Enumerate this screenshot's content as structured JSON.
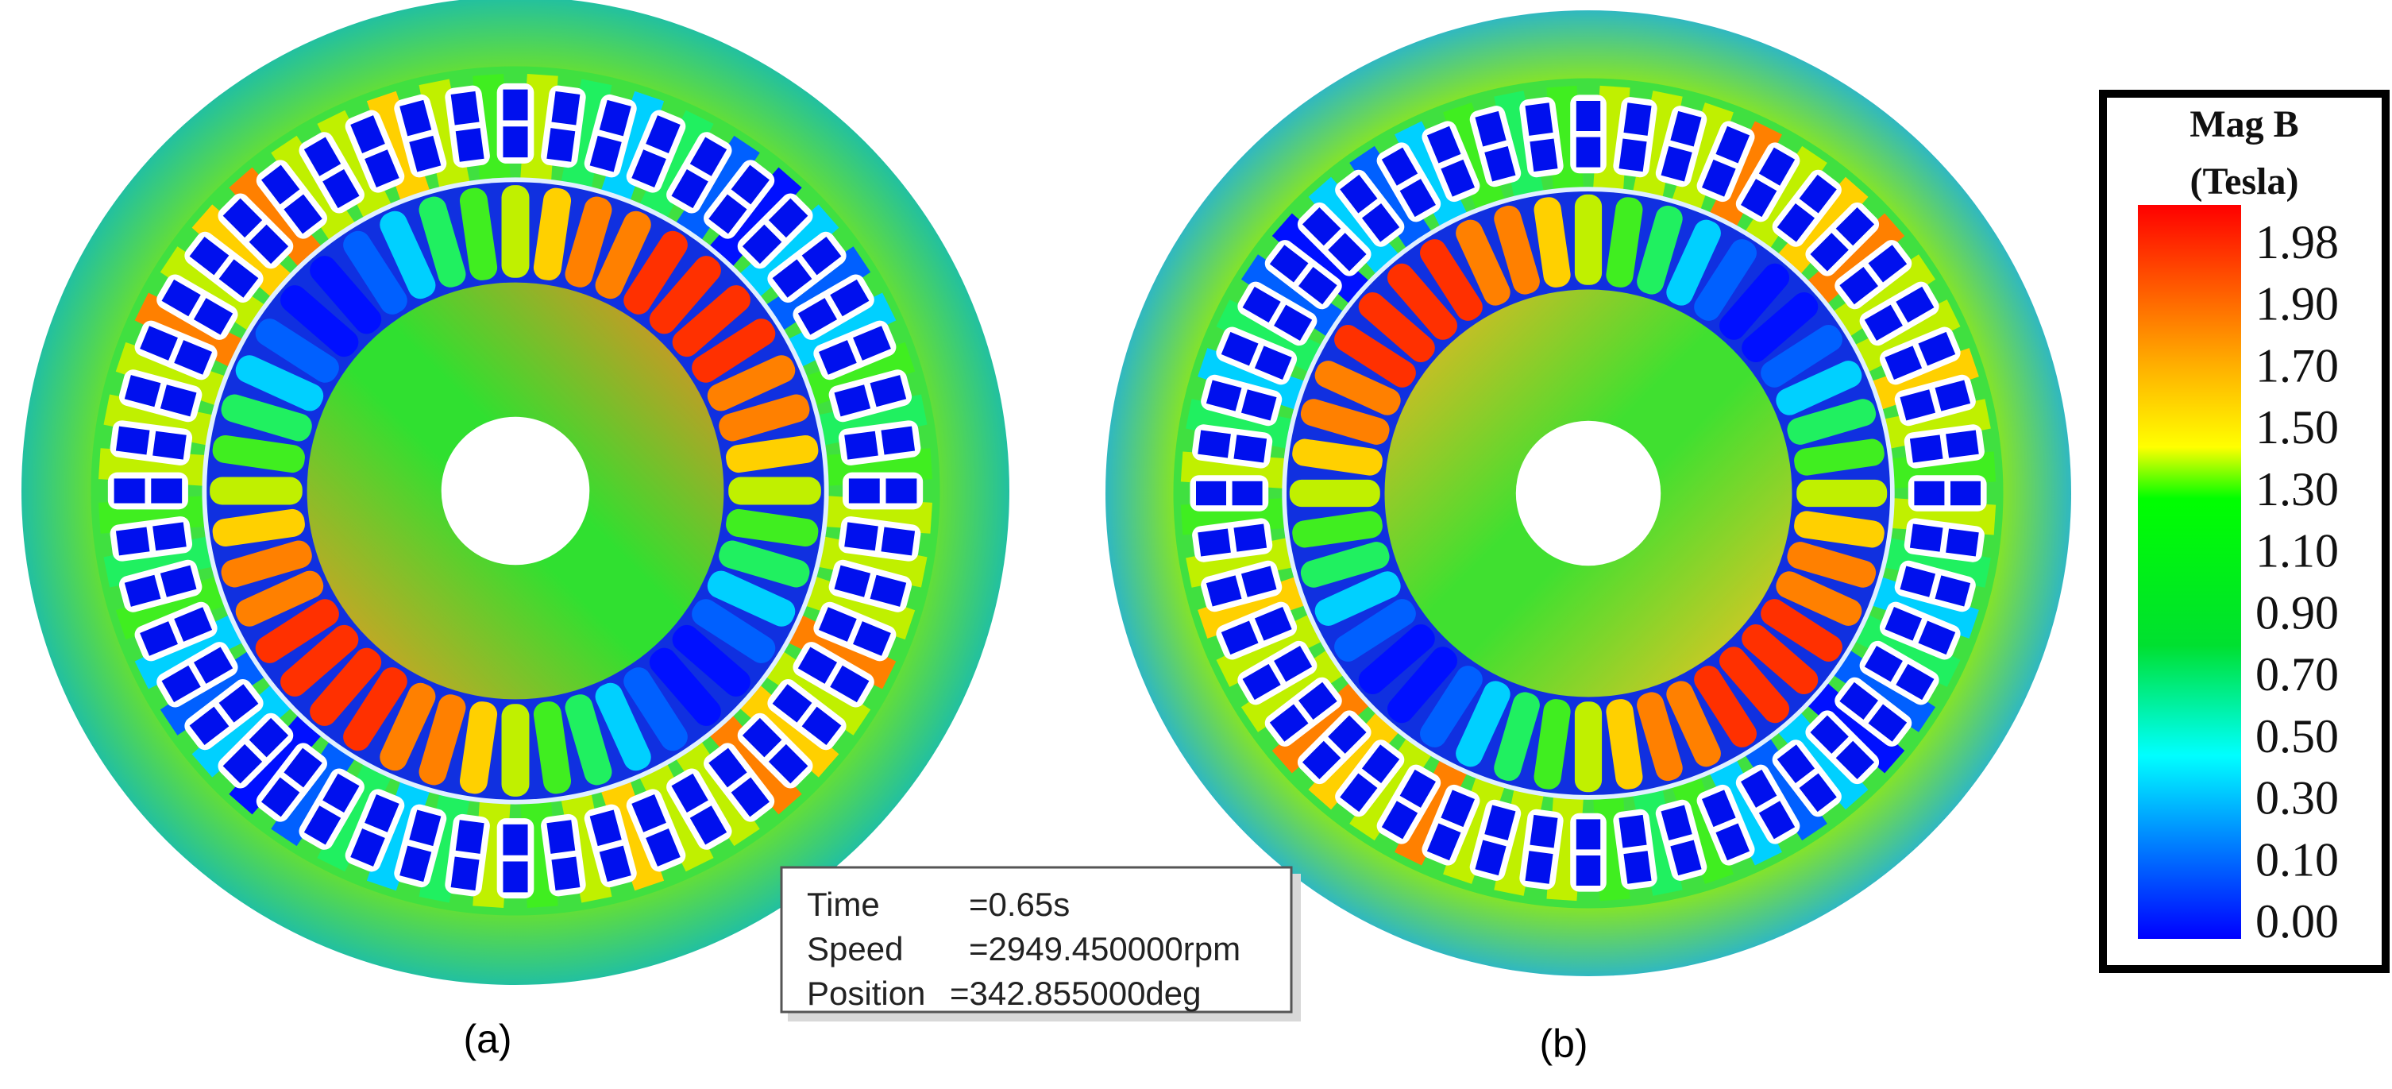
{
  "legend": {
    "title": "Mag B",
    "unit": "(Tesla)",
    "labels": [
      "1.98",
      "1.90",
      "1.70",
      "1.50",
      "1.30",
      "1.10",
      "0.90",
      "0.70",
      "0.50",
      "0.30",
      "0.10",
      "0.00"
    ]
  },
  "info_box": {
    "rows": [
      [
        "Time",
        "=0.65s"
      ],
      [
        "Speed",
        "=2949.450000rpm"
      ],
      [
        "Position",
        "=342.855000deg"
      ]
    ]
  },
  "captions": [
    "(a)",
    "(b)"
  ]
}
